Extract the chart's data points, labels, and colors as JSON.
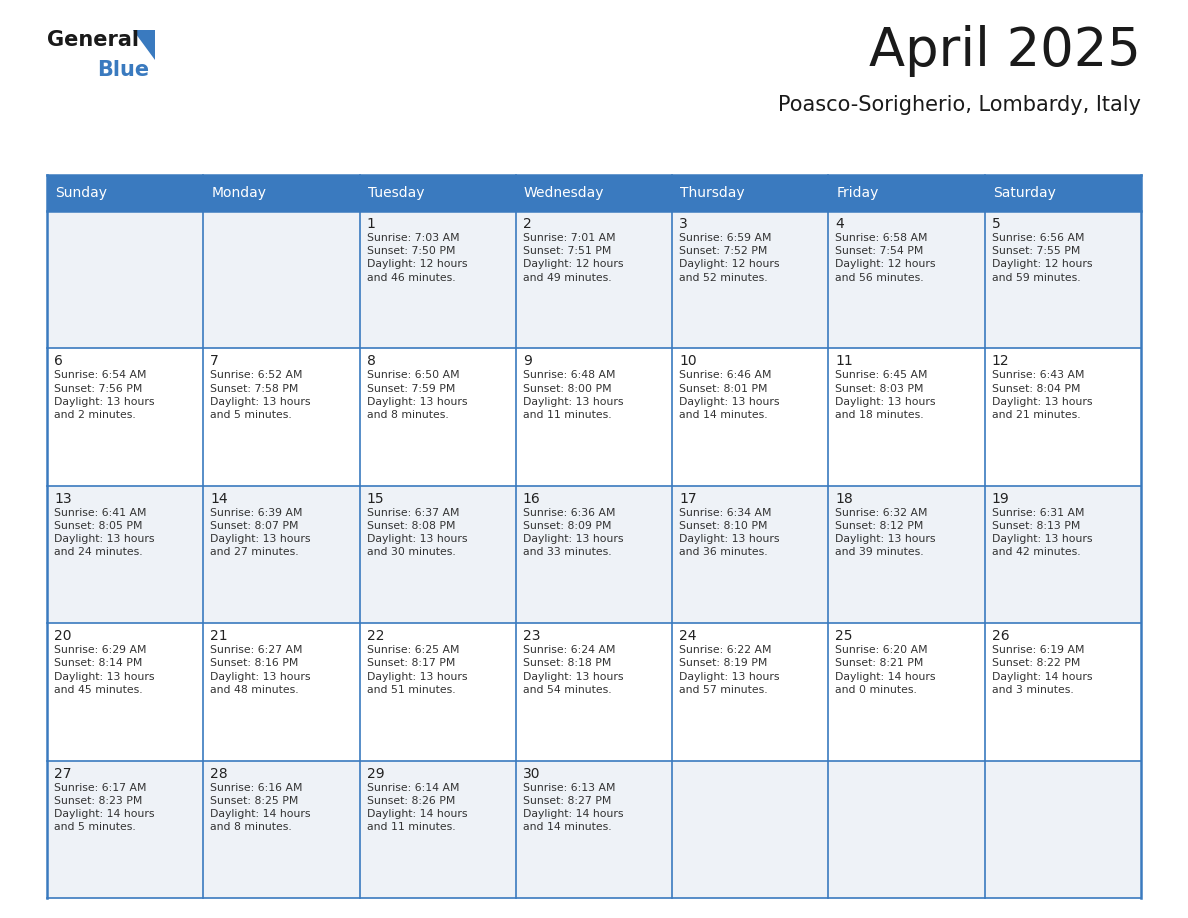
{
  "title": "April 2025",
  "subtitle": "Poasco-Sorigherio, Lombardy, Italy",
  "header_bg": "#3a7abf",
  "header_text": "#ffffff",
  "row_bg_odd": "#eef2f7",
  "row_bg_even": "#ffffff",
  "border_color": "#3a7abf",
  "days_of_week": [
    "Sunday",
    "Monday",
    "Tuesday",
    "Wednesday",
    "Thursday",
    "Friday",
    "Saturday"
  ],
  "calendar": [
    [
      {
        "day": "",
        "info": ""
      },
      {
        "day": "",
        "info": ""
      },
      {
        "day": "1",
        "info": "Sunrise: 7:03 AM\nSunset: 7:50 PM\nDaylight: 12 hours\nand 46 minutes."
      },
      {
        "day": "2",
        "info": "Sunrise: 7:01 AM\nSunset: 7:51 PM\nDaylight: 12 hours\nand 49 minutes."
      },
      {
        "day": "3",
        "info": "Sunrise: 6:59 AM\nSunset: 7:52 PM\nDaylight: 12 hours\nand 52 minutes."
      },
      {
        "day": "4",
        "info": "Sunrise: 6:58 AM\nSunset: 7:54 PM\nDaylight: 12 hours\nand 56 minutes."
      },
      {
        "day": "5",
        "info": "Sunrise: 6:56 AM\nSunset: 7:55 PM\nDaylight: 12 hours\nand 59 minutes."
      }
    ],
    [
      {
        "day": "6",
        "info": "Sunrise: 6:54 AM\nSunset: 7:56 PM\nDaylight: 13 hours\nand 2 minutes."
      },
      {
        "day": "7",
        "info": "Sunrise: 6:52 AM\nSunset: 7:58 PM\nDaylight: 13 hours\nand 5 minutes."
      },
      {
        "day": "8",
        "info": "Sunrise: 6:50 AM\nSunset: 7:59 PM\nDaylight: 13 hours\nand 8 minutes."
      },
      {
        "day": "9",
        "info": "Sunrise: 6:48 AM\nSunset: 8:00 PM\nDaylight: 13 hours\nand 11 minutes."
      },
      {
        "day": "10",
        "info": "Sunrise: 6:46 AM\nSunset: 8:01 PM\nDaylight: 13 hours\nand 14 minutes."
      },
      {
        "day": "11",
        "info": "Sunrise: 6:45 AM\nSunset: 8:03 PM\nDaylight: 13 hours\nand 18 minutes."
      },
      {
        "day": "12",
        "info": "Sunrise: 6:43 AM\nSunset: 8:04 PM\nDaylight: 13 hours\nand 21 minutes."
      }
    ],
    [
      {
        "day": "13",
        "info": "Sunrise: 6:41 AM\nSunset: 8:05 PM\nDaylight: 13 hours\nand 24 minutes."
      },
      {
        "day": "14",
        "info": "Sunrise: 6:39 AM\nSunset: 8:07 PM\nDaylight: 13 hours\nand 27 minutes."
      },
      {
        "day": "15",
        "info": "Sunrise: 6:37 AM\nSunset: 8:08 PM\nDaylight: 13 hours\nand 30 minutes."
      },
      {
        "day": "16",
        "info": "Sunrise: 6:36 AM\nSunset: 8:09 PM\nDaylight: 13 hours\nand 33 minutes."
      },
      {
        "day": "17",
        "info": "Sunrise: 6:34 AM\nSunset: 8:10 PM\nDaylight: 13 hours\nand 36 minutes."
      },
      {
        "day": "18",
        "info": "Sunrise: 6:32 AM\nSunset: 8:12 PM\nDaylight: 13 hours\nand 39 minutes."
      },
      {
        "day": "19",
        "info": "Sunrise: 6:31 AM\nSunset: 8:13 PM\nDaylight: 13 hours\nand 42 minutes."
      }
    ],
    [
      {
        "day": "20",
        "info": "Sunrise: 6:29 AM\nSunset: 8:14 PM\nDaylight: 13 hours\nand 45 minutes."
      },
      {
        "day": "21",
        "info": "Sunrise: 6:27 AM\nSunset: 8:16 PM\nDaylight: 13 hours\nand 48 minutes."
      },
      {
        "day": "22",
        "info": "Sunrise: 6:25 AM\nSunset: 8:17 PM\nDaylight: 13 hours\nand 51 minutes."
      },
      {
        "day": "23",
        "info": "Sunrise: 6:24 AM\nSunset: 8:18 PM\nDaylight: 13 hours\nand 54 minutes."
      },
      {
        "day": "24",
        "info": "Sunrise: 6:22 AM\nSunset: 8:19 PM\nDaylight: 13 hours\nand 57 minutes."
      },
      {
        "day": "25",
        "info": "Sunrise: 6:20 AM\nSunset: 8:21 PM\nDaylight: 14 hours\nand 0 minutes."
      },
      {
        "day": "26",
        "info": "Sunrise: 6:19 AM\nSunset: 8:22 PM\nDaylight: 14 hours\nand 3 minutes."
      }
    ],
    [
      {
        "day": "27",
        "info": "Sunrise: 6:17 AM\nSunset: 8:23 PM\nDaylight: 14 hours\nand 5 minutes."
      },
      {
        "day": "28",
        "info": "Sunrise: 6:16 AM\nSunset: 8:25 PM\nDaylight: 14 hours\nand 8 minutes."
      },
      {
        "day": "29",
        "info": "Sunrise: 6:14 AM\nSunset: 8:26 PM\nDaylight: 14 hours\nand 11 minutes."
      },
      {
        "day": "30",
        "info": "Sunrise: 6:13 AM\nSunset: 8:27 PM\nDaylight: 14 hours\nand 14 minutes."
      },
      {
        "day": "",
        "info": ""
      },
      {
        "day": "",
        "info": ""
      },
      {
        "day": "",
        "info": ""
      }
    ]
  ]
}
